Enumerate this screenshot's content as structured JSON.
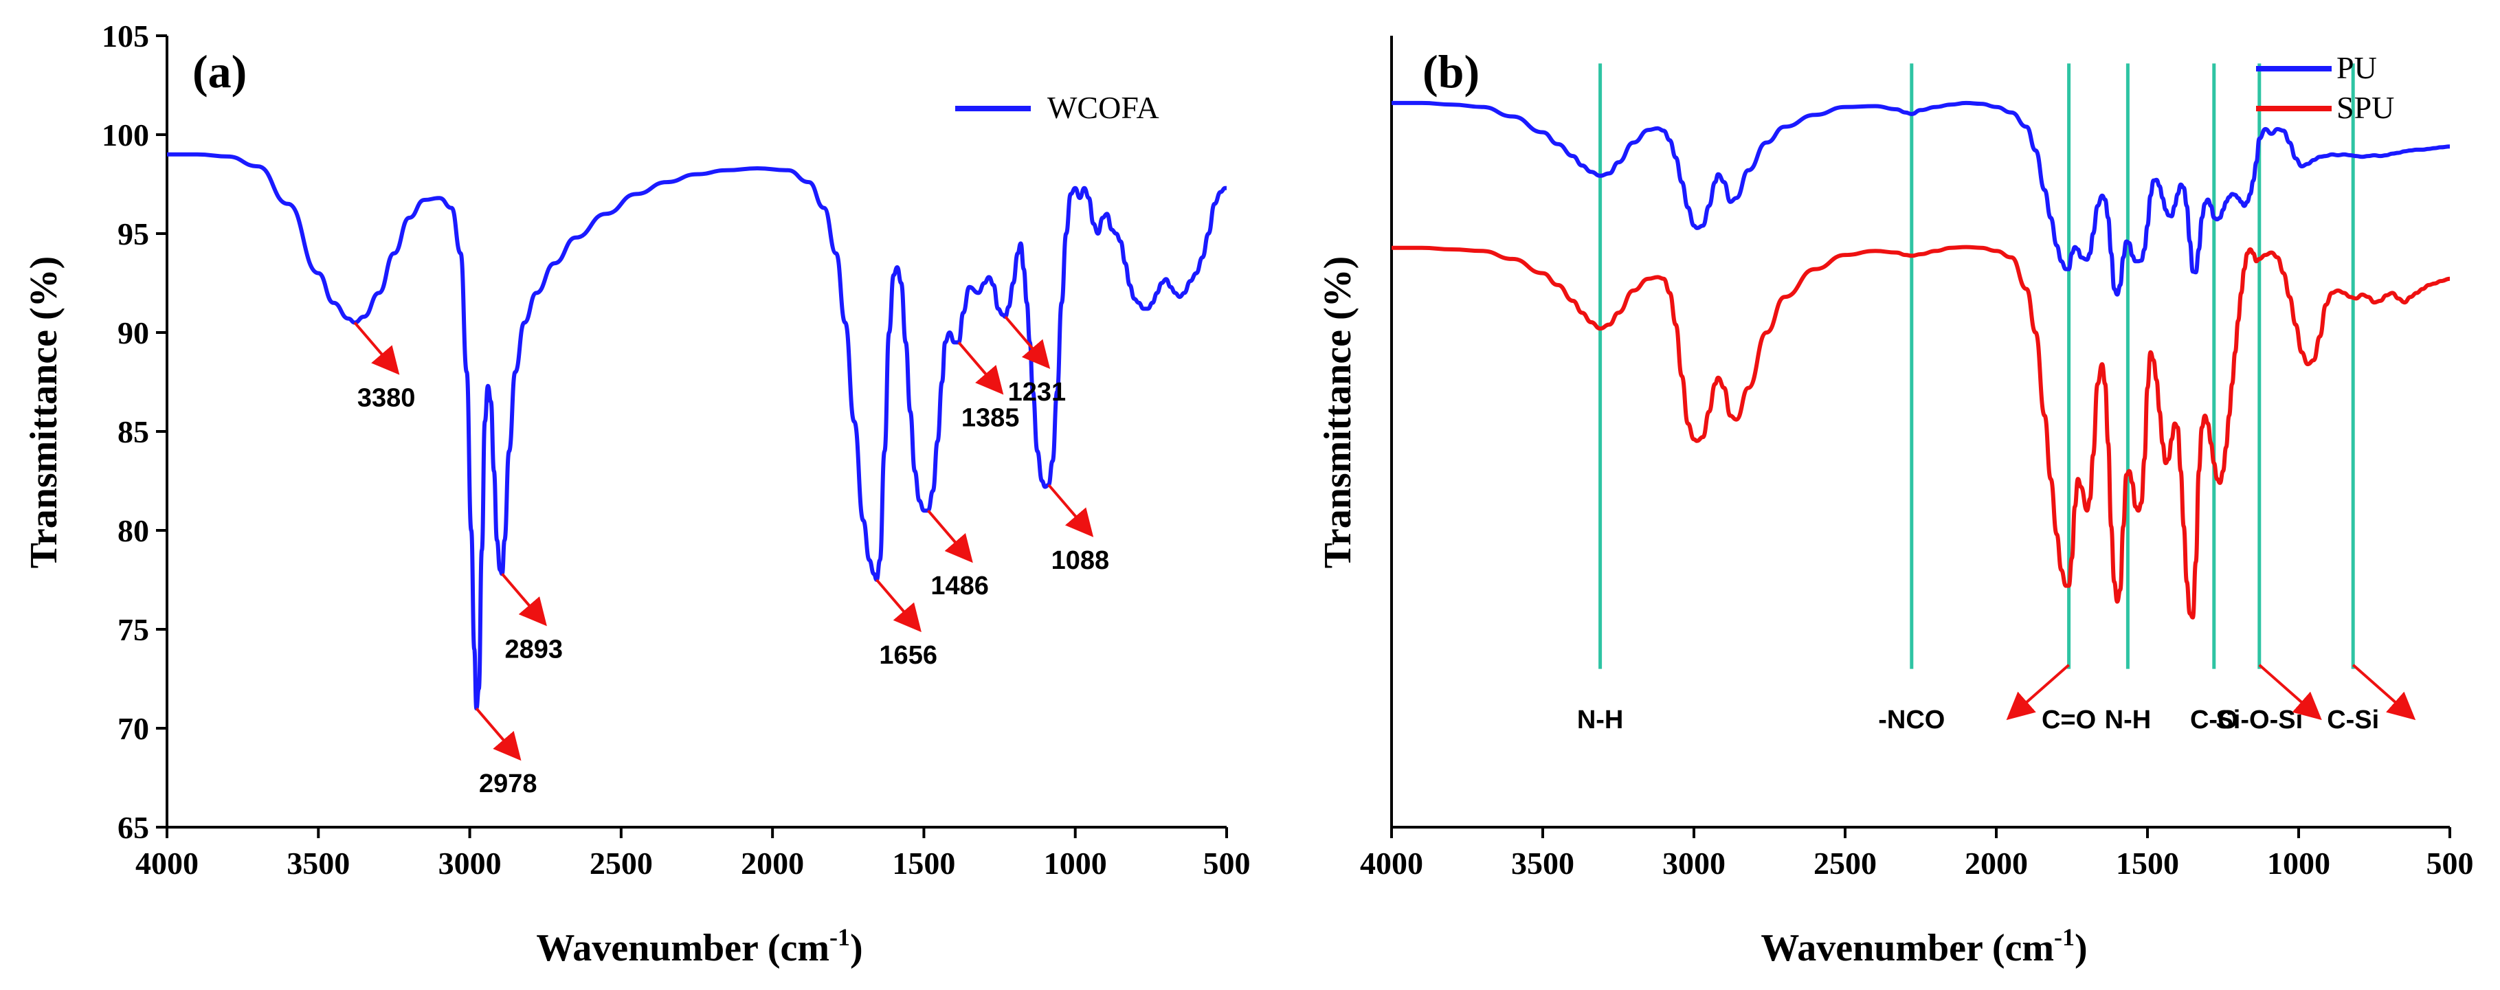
{
  "chart_data": [
    {
      "type": "line",
      "panel_label": "(a)",
      "xlabel": "Wavenumber (cm-1)",
      "xlabel_main": "Wavenumber (cm",
      "xlabel_sup": "-1",
      "xlabel_close": ")",
      "ylabel": "Transmittance (%)",
      "xlim": [
        4000,
        500
      ],
      "ylim": [
        65,
        105
      ],
      "x_ticks": [
        4000,
        3500,
        3000,
        2500,
        2000,
        1500,
        1000,
        500
      ],
      "x_tick_labels": [
        "4000",
        "3500",
        "3000",
        "2500",
        "2000",
        "1500",
        "1000",
        "500"
      ],
      "y_ticks": [
        65,
        70,
        75,
        80,
        85,
        90,
        95,
        100,
        105
      ],
      "y_tick_labels": [
        "65",
        "70",
        "75",
        "80",
        "85",
        "90",
        "95",
        "100",
        "105"
      ],
      "legend": "top-right",
      "series": [
        {
          "name": "WCOFA",
          "color": "#1a1aff",
          "x": [
            4000,
            3900,
            3800,
            3700,
            3600,
            3500,
            3450,
            3400,
            3380,
            3350,
            3300,
            3250,
            3200,
            3150,
            3100,
            3060,
            3030,
            3010,
            2995,
            2985,
            2978,
            2970,
            2960,
            2950,
            2940,
            2930,
            2920,
            2910,
            2900,
            2893,
            2885,
            2870,
            2850,
            2820,
            2780,
            2720,
            2650,
            2550,
            2450,
            2350,
            2250,
            2150,
            2050,
            1950,
            1880,
            1830,
            1790,
            1760,
            1730,
            1700,
            1680,
            1665,
            1656,
            1645,
            1630,
            1615,
            1600,
            1588,
            1575,
            1560,
            1545,
            1530,
            1515,
            1500,
            1486,
            1470,
            1455,
            1440,
            1430,
            1415,
            1400,
            1385,
            1370,
            1350,
            1320,
            1300,
            1285,
            1270,
            1255,
            1240,
            1231,
            1220,
            1205,
            1190,
            1180,
            1170,
            1160,
            1150,
            1140,
            1125,
            1110,
            1100,
            1088,
            1075,
            1060,
            1045,
            1030,
            1015,
            1000,
            985,
            970,
            955,
            940,
            925,
            910,
            895,
            880,
            865,
            850,
            835,
            820,
            805,
            790,
            775,
            760,
            745,
            730,
            715,
            700,
            685,
            670,
            655,
            640,
            620,
            600,
            580,
            560,
            540,
            520,
            505,
            500
          ],
          "y": [
            99.0,
            99.0,
            98.9,
            98.4,
            96.5,
            93.0,
            91.5,
            90.7,
            90.5,
            90.8,
            92.0,
            94.0,
            95.8,
            96.7,
            96.8,
            96.3,
            94.0,
            88.0,
            80.0,
            74.0,
            71.0,
            72.0,
            79.0,
            85.5,
            87.3,
            86.5,
            83.0,
            79.5,
            78.0,
            77.8,
            79.5,
            84.0,
            88.0,
            90.5,
            92.0,
            93.5,
            94.8,
            96.0,
            97.0,
            97.6,
            98.0,
            98.2,
            98.3,
            98.2,
            97.6,
            96.3,
            94.0,
            90.5,
            85.5,
            80.5,
            78.5,
            77.8,
            77.5,
            78.5,
            84.0,
            90.0,
            92.9,
            93.3,
            92.5,
            89.5,
            86.0,
            83.0,
            81.5,
            81.0,
            81.0,
            82.0,
            84.5,
            87.5,
            89.5,
            90.0,
            89.5,
            89.5,
            91.0,
            92.3,
            92.0,
            92.5,
            92.8,
            92.4,
            91.2,
            90.9,
            90.8,
            91.3,
            92.5,
            94.0,
            94.5,
            93.2,
            91.5,
            89.5,
            87.0,
            84.0,
            82.5,
            82.2,
            82.3,
            83.5,
            87.0,
            91.5,
            95.0,
            97.0,
            97.3,
            96.8,
            97.3,
            96.8,
            95.5,
            95.0,
            95.8,
            96.0,
            95.2,
            95.0,
            94.6,
            93.5,
            92.4,
            91.7,
            91.5,
            91.2,
            91.2,
            91.5,
            92.0,
            92.5,
            92.7,
            92.3,
            92.0,
            91.8,
            92.0,
            92.6,
            93.0,
            93.8,
            95.0,
            96.5,
            97.1,
            97.3,
            97.3
          ]
        }
      ],
      "annotations": [
        {
          "label": "3380",
          "x": 3380,
          "y": 90.5
        },
        {
          "label": "2978",
          "x": 2978,
          "y": 71.0
        },
        {
          "label": "2893",
          "x": 2893,
          "y": 77.8
        },
        {
          "label": "1656",
          "x": 1656,
          "y": 77.5
        },
        {
          "label": "1486",
          "x": 1486,
          "y": 81.0
        },
        {
          "label": "1385",
          "x": 1385,
          "y": 89.5
        },
        {
          "label": "1231",
          "x": 1231,
          "y": 90.8
        },
        {
          "label": "1088",
          "x": 1088,
          "y": 82.3
        }
      ]
    },
    {
      "type": "line",
      "panel_label": "(b)",
      "xlabel": "Wavenumber (cm-1)",
      "xlabel_main": "Wavenumber (cm",
      "xlabel_sup": "-1",
      "xlabel_close": ")",
      "ylabel": "Transmittance (%)",
      "xlim": [
        4000,
        500
      ],
      "ylim": [
        0,
        100
      ],
      "x_ticks": [
        4000,
        3500,
        3000,
        2500,
        2000,
        1500,
        1000,
        500
      ],
      "x_tick_labels": [
        "4000",
        "3500",
        "3000",
        "2500",
        "2000",
        "1500",
        "1000",
        "500"
      ],
      "grid": false,
      "legend": "top-right",
      "series": [
        {
          "name": "PU",
          "color": "#1a1aff",
          "x": [
            4000,
            3900,
            3800,
            3700,
            3600,
            3500,
            3450,
            3400,
            3370,
            3340,
            3310,
            3280,
            3250,
            3200,
            3150,
            3120,
            3100,
            3080,
            3060,
            3040,
            3020,
            3000,
            2990,
            2970,
            2950,
            2930,
            2920,
            2900,
            2880,
            2860,
            2820,
            2760,
            2700,
            2600,
            2500,
            2400,
            2330,
            2300,
            2280,
            2250,
            2200,
            2150,
            2100,
            2050,
            2000,
            1950,
            1900,
            1870,
            1840,
            1820,
            1800,
            1785,
            1770,
            1760,
            1750,
            1740,
            1730,
            1720,
            1700,
            1690,
            1680,
            1665,
            1650,
            1640,
            1630,
            1620,
            1610,
            1600,
            1590,
            1580,
            1570,
            1560,
            1550,
            1540,
            1530,
            1520,
            1510,
            1500,
            1490,
            1480,
            1470,
            1460,
            1450,
            1440,
            1430,
            1420,
            1410,
            1400,
            1390,
            1380,
            1370,
            1360,
            1350,
            1340,
            1330,
            1320,
            1310,
            1300,
            1290,
            1280,
            1270,
            1260,
            1250,
            1240,
            1230,
            1220,
            1210,
            1200,
            1190,
            1180,
            1170,
            1160,
            1150,
            1140,
            1130,
            1110,
            1090,
            1070,
            1050,
            1030,
            1010,
            990,
            970,
            950,
            930,
            910,
            890,
            870,
            850,
            830,
            810,
            790,
            770,
            750,
            730,
            710,
            690,
            670,
            650,
            630,
            610,
            590,
            570,
            550,
            530,
            500
          ],
          "y": [
            91.5,
            91.5,
            91.3,
            91.0,
            89.8,
            87.8,
            86.3,
            84.8,
            83.6,
            82.8,
            82.3,
            82.6,
            84.0,
            86.5,
            88.1,
            88.3,
            88.0,
            86.8,
            84.6,
            81.5,
            78.3,
            76.0,
            75.7,
            76.0,
            78.5,
            81.5,
            82.5,
            81.5,
            79.0,
            79.5,
            83.0,
            86.5,
            88.5,
            90.0,
            91.0,
            91.1,
            90.7,
            90.3,
            90.1,
            90.6,
            91.0,
            91.3,
            91.5,
            91.4,
            91.0,
            90.3,
            88.5,
            85.5,
            80.5,
            77.0,
            73.5,
            71.5,
            70.5,
            70.5,
            72.5,
            73.3,
            73.0,
            72.0,
            71.7,
            72.5,
            75.0,
            78.5,
            79.8,
            79.3,
            77.0,
            72.5,
            68.0,
            67.3,
            68.5,
            72.0,
            74.0,
            73.8,
            72.2,
            71.5,
            71.5,
            71.6,
            73.0,
            76.0,
            79.8,
            81.7,
            81.8,
            81.0,
            79.5,
            78.0,
            77.3,
            77.2,
            78.5,
            80.0,
            81.2,
            80.8,
            78.5,
            74.0,
            70.2,
            70.1,
            73.0,
            77.0,
            78.8,
            79.3,
            78.5,
            77.0,
            76.8,
            77.0,
            78.0,
            79.0,
            79.6,
            80.0,
            79.9,
            79.5,
            79.0,
            78.5,
            79.0,
            80.0,
            81.7,
            84.0,
            87.0,
            88.2,
            87.6,
            88.2,
            88.0,
            86.5,
            84.5,
            83.5,
            83.8,
            84.3,
            84.7,
            84.8,
            85.0,
            84.9,
            85.0,
            84.9,
            84.8,
            84.7,
            84.8,
            84.9,
            84.8,
            84.9,
            85.1,
            85.2,
            85.4,
            85.5,
            85.6,
            85.6,
            85.7,
            85.8,
            85.9,
            86.0
          ]
        },
        {
          "name": "SPU",
          "color": "#ee1111",
          "x": [
            4000,
            3900,
            3800,
            3700,
            3600,
            3500,
            3450,
            3400,
            3370,
            3340,
            3310,
            3280,
            3250,
            3200,
            3150,
            3120,
            3100,
            3080,
            3060,
            3040,
            3020,
            3000,
            2990,
            2970,
            2950,
            2930,
            2920,
            2900,
            2880,
            2860,
            2820,
            2760,
            2700,
            2600,
            2500,
            2400,
            2330,
            2300,
            2280,
            2250,
            2200,
            2150,
            2100,
            2050,
            2000,
            1950,
            1900,
            1870,
            1840,
            1820,
            1800,
            1785,
            1770,
            1760,
            1750,
            1740,
            1730,
            1720,
            1700,
            1690,
            1680,
            1665,
            1650,
            1640,
            1630,
            1620,
            1610,
            1600,
            1590,
            1580,
            1570,
            1560,
            1550,
            1540,
            1530,
            1520,
            1510,
            1500,
            1490,
            1480,
            1470,
            1460,
            1450,
            1440,
            1430,
            1420,
            1410,
            1400,
            1390,
            1380,
            1370,
            1360,
            1350,
            1340,
            1330,
            1320,
            1310,
            1300,
            1290,
            1280,
            1270,
            1260,
            1250,
            1240,
            1230,
            1220,
            1210,
            1200,
            1190,
            1180,
            1170,
            1160,
            1150,
            1140,
            1130,
            1110,
            1090,
            1070,
            1050,
            1030,
            1010,
            990,
            970,
            950,
            930,
            910,
            890,
            870,
            850,
            830,
            810,
            790,
            770,
            750,
            730,
            710,
            690,
            670,
            650,
            630,
            610,
            590,
            570,
            550,
            530,
            500
          ],
          "y": [
            73.2,
            73.2,
            73.0,
            72.8,
            71.8,
            70.0,
            68.5,
            66.5,
            65.0,
            63.8,
            63.0,
            63.5,
            65.0,
            67.8,
            69.3,
            69.5,
            69.3,
            67.5,
            63.5,
            57.0,
            51.0,
            49.0,
            48.8,
            49.3,
            52.5,
            56.0,
            56.8,
            55.5,
            52.0,
            51.5,
            55.5,
            62.5,
            67.0,
            70.5,
            72.3,
            72.8,
            72.6,
            72.3,
            72.2,
            72.4,
            72.8,
            73.2,
            73.3,
            73.2,
            72.8,
            72.0,
            68.0,
            62.5,
            52.0,
            44.0,
            37.0,
            32.5,
            30.5,
            30.5,
            34.0,
            40.5,
            44.0,
            43.0,
            40.0,
            41.5,
            47.0,
            56.0,
            58.5,
            56.0,
            48.5,
            38.0,
            31.0,
            28.5,
            30.0,
            38.0,
            44.5,
            45.0,
            43.5,
            40.5,
            40.0,
            41.0,
            46.5,
            55.5,
            60.0,
            59.0,
            56.5,
            52.5,
            48.5,
            46.0,
            46.5,
            49.0,
            51.0,
            50.5,
            45.0,
            38.0,
            31.0,
            27.0,
            26.5,
            33.5,
            45.0,
            50.5,
            52.0,
            51.0,
            48.5,
            46.0,
            44.0,
            43.5,
            45.0,
            48.0,
            52.0,
            56.0,
            60.0,
            64.0,
            67.5,
            70.5,
            72.5,
            73.0,
            72.5,
            71.5,
            71.8,
            72.3,
            72.6,
            72.0,
            70.0,
            67.0,
            63.5,
            60.0,
            58.5,
            59.0,
            62.0,
            66.0,
            67.5,
            67.8,
            67.5,
            67.0,
            66.8,
            67.3,
            67.0,
            66.3,
            66.5,
            67.2,
            67.5,
            66.8,
            66.3,
            67.0,
            67.5,
            68.0,
            68.5,
            68.7,
            69.0,
            69.3
          ]
        }
      ],
      "peak_markers": [
        {
          "label": "N-H",
          "x": 3310
        },
        {
          "label": "-NCO",
          "x": 2280
        },
        {
          "label": "C=O",
          "x": 1760
        },
        {
          "label": "N-H",
          "x": 1565
        },
        {
          "label": "C-O",
          "x": 1280
        },
        {
          "label": "Si-O-Si",
          "x": 1130
        },
        {
          "label": "C-Si",
          "x": 820
        }
      ],
      "marker_color": "#2ec4a3"
    }
  ]
}
